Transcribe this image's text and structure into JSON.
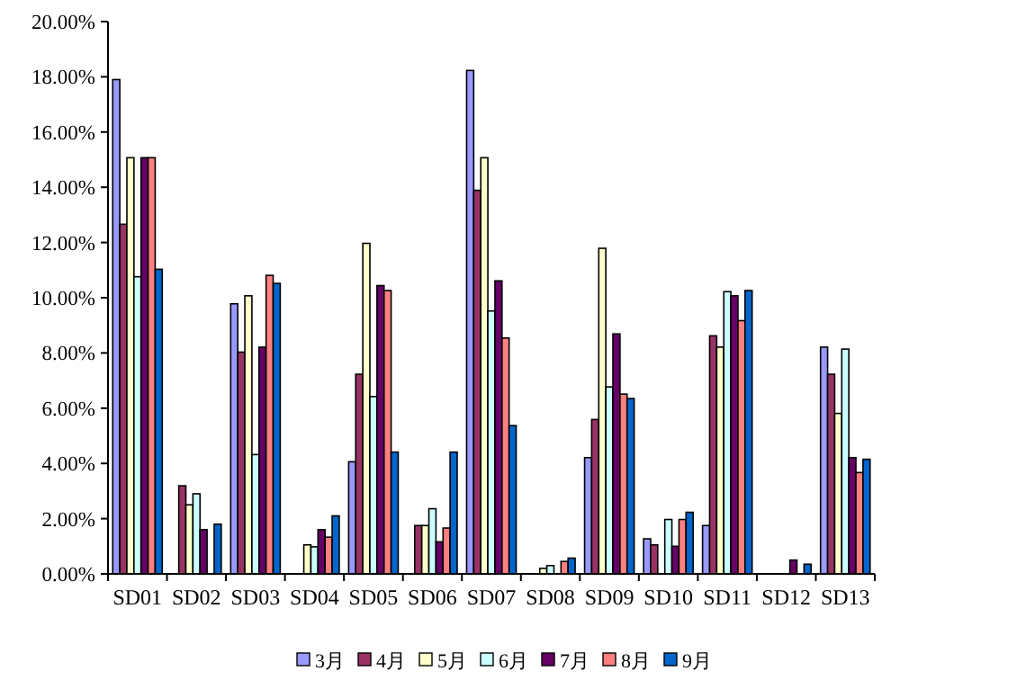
{
  "chart_data": {
    "type": "bar",
    "categories": [
      "SD01",
      "SD02",
      "SD03",
      "SD04",
      "SD05",
      "SD06",
      "SD07",
      "SD08",
      "SD09",
      "SD10",
      "SD11",
      "SD12",
      "SD13"
    ],
    "series": [
      {
        "name": "3月",
        "color": "#9999ff",
        "values": [
          17.9,
          0,
          9.78,
          0,
          4.06,
          0,
          18.23,
          0,
          4.21,
          1.27,
          1.75,
          0,
          8.21
        ]
      },
      {
        "name": "4月",
        "color": "#993366",
        "values": [
          12.66,
          3.19,
          8.03,
          0,
          7.23,
          1.75,
          13.89,
          0,
          5.59,
          1.05,
          8.62,
          0,
          7.23
        ]
      },
      {
        "name": "5月",
        "color": "#ffffcc",
        "values": [
          15.07,
          2.5,
          10.07,
          1.05,
          11.97,
          1.75,
          15.07,
          0.2,
          11.79,
          0,
          8.21,
          0,
          5.81
        ]
      },
      {
        "name": "6月",
        "color": "#ccffff",
        "values": [
          10.76,
          2.9,
          4.32,
          0.98,
          6.42,
          2.36,
          9.52,
          0.3,
          6.77,
          1.97,
          10.22,
          0,
          8.14
        ]
      },
      {
        "name": "7月",
        "color": "#660066",
        "values": [
          15.07,
          1.6,
          8.21,
          1.6,
          10.44,
          1.16,
          10.61,
          0,
          8.69,
          1.0,
          10.07,
          0.5,
          4.21
        ]
      },
      {
        "name": "8月",
        "color": "#ff8080",
        "values": [
          15.07,
          0,
          10.81,
          1.33,
          10.26,
          1.66,
          8.54,
          0.45,
          6.51,
          1.97,
          9.17,
          0,
          3.67
        ]
      },
      {
        "name": "9月",
        "color": "#0066cc",
        "values": [
          11.03,
          1.8,
          10.52,
          2.1,
          4.41,
          4.41,
          5.37,
          0.57,
          6.35,
          2.23,
          10.26,
          0.35,
          4.15
        ]
      }
    ],
    "ylim": [
      0,
      20
    ],
    "yticks": [
      {
        "value": 0,
        "label": "0.00%"
      },
      {
        "value": 2,
        "label": "2.00%"
      },
      {
        "value": 4,
        "label": "4.00%"
      },
      {
        "value": 6,
        "label": "6.00%"
      },
      {
        "value": 8,
        "label": "8.00%"
      },
      {
        "value": 10,
        "label": "10.00%"
      },
      {
        "value": 12,
        "label": "12.00%"
      },
      {
        "value": 14,
        "label": "14.00%"
      },
      {
        "value": 16,
        "label": "16.00%"
      },
      {
        "value": 18,
        "label": "18.00%"
      },
      {
        "value": 20,
        "label": "20.00%"
      }
    ],
    "legend": "bottom"
  }
}
